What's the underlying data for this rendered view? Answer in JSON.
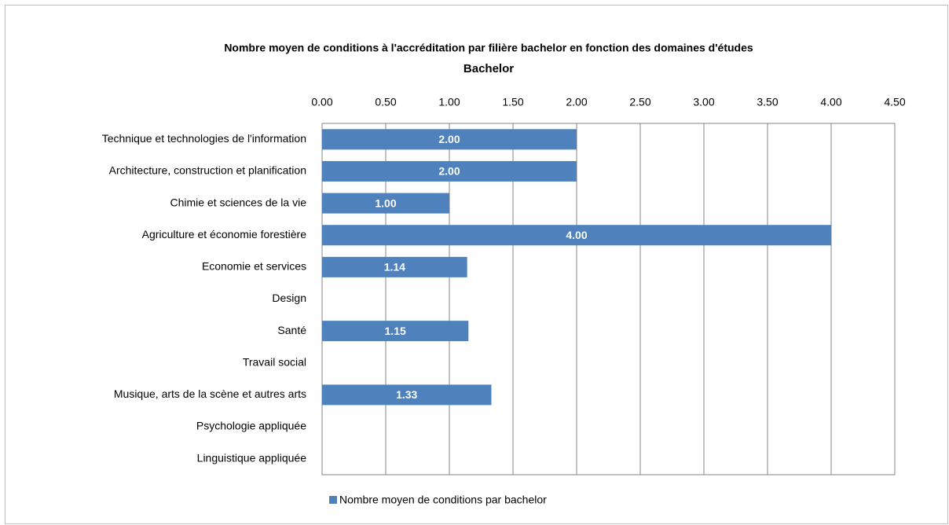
{
  "chart_data": {
    "type": "hbar",
    "title": "Nombre moyen de conditions à l'accréditation par filière bachelor en fonction des domaines d'études",
    "subtitle": "Bachelor",
    "categories": [
      "Technique et technologies de l'information",
      "Architecture, construction et planification",
      "Chimie et sciences de la vie",
      "Agriculture et économie forestière",
      "Economie et services",
      "Design",
      "Santé",
      "Travail social",
      "Musique, arts de la scène et autres arts",
      "Psychologie appliquée",
      "Linguistique appliquée"
    ],
    "series": [
      {
        "name": "Nombre moyen de conditions par bachelor",
        "color": "#4f81bd",
        "values": [
          2,
          2,
          1,
          4,
          1.14,
          null,
          1.15,
          null,
          1.33,
          null,
          null
        ],
        "value_labels": [
          "2.00",
          "2.00",
          "1.00",
          "4.00",
          "1.14",
          null,
          "1.15",
          null,
          "1.33",
          null,
          null
        ]
      }
    ],
    "xlim": [
      0,
      4.5
    ],
    "xticks": [
      {
        "value": 0,
        "label": "0.00"
      },
      {
        "value": 0.5,
        "label": "0.50"
      },
      {
        "value": 1,
        "label": "1.00"
      },
      {
        "value": 1.5,
        "label": "1.50"
      },
      {
        "value": 2,
        "label": "2.00"
      },
      {
        "value": 2.5,
        "label": "2.50"
      },
      {
        "value": 3,
        "label": "3.00"
      },
      {
        "value": 3.5,
        "label": "3.50"
      },
      {
        "value": 4,
        "label": "4.00"
      },
      {
        "value": 4.5,
        "label": "4.50"
      }
    ],
    "grid": true,
    "legend": "bottom"
  }
}
